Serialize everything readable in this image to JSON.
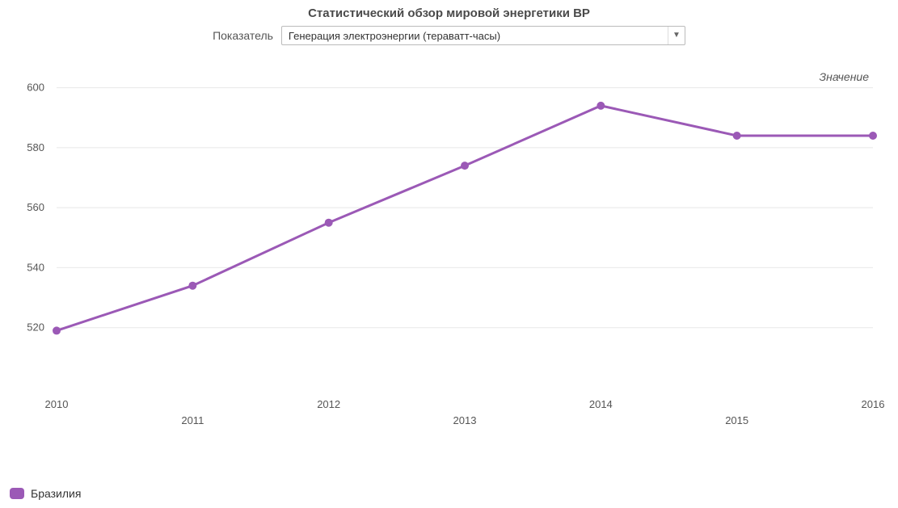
{
  "title": "Статистический обзор мировой энергетики BP",
  "selector": {
    "label": "Показатель",
    "selected": "Генерация электроэнергии (тераватт-часы)"
  },
  "chart": {
    "type": "line",
    "value_label": "Значение",
    "background_color": "#ffffff",
    "grid_color": "#e8e8e8",
    "text_color": "#555555",
    "title_fontsize": 15,
    "label_fontsize": 13,
    "line_width": 3,
    "marker_radius": 5,
    "x": {
      "categories": [
        "2010",
        "2011",
        "2012",
        "2013",
        "2014",
        "2015",
        "2016"
      ],
      "tick_stagger": true
    },
    "y": {
      "min": 500,
      "max": 605,
      "ticks": [
        520,
        540,
        560,
        580,
        600
      ]
    },
    "series": [
      {
        "name": "Бразилия",
        "color": "#9b59b6",
        "values": [
          519,
          534,
          555,
          574,
          594,
          584,
          584
        ]
      }
    ]
  },
  "legend": {
    "items": [
      {
        "label": "Бразилия",
        "color": "#9b59b6"
      }
    ]
  }
}
